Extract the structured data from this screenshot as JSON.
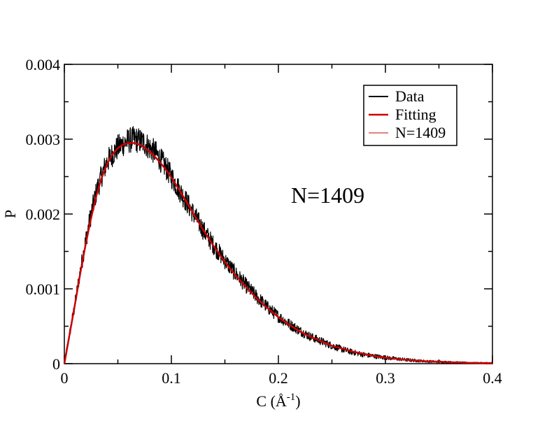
{
  "chart_data": {
    "type": "line",
    "title": "",
    "xlabel": "C (Å",
    "xlabel_sup": "-1",
    "xlabel_close": ")",
    "ylabel": "P",
    "xlim": [
      0,
      0.4
    ],
    "ylim": [
      0,
      0.004
    ],
    "x_ticks": [
      {
        "value": 0,
        "label": "0"
      },
      {
        "value": 0.1,
        "label": "0.1"
      },
      {
        "value": 0.2,
        "label": "0.2"
      },
      {
        "value": 0.3,
        "label": "0.3"
      },
      {
        "value": 0.4,
        "label": "0.4"
      }
    ],
    "y_ticks": [
      {
        "value": 0,
        "label": "0"
      },
      {
        "value": 0.001,
        "label": "0.001"
      },
      {
        "value": 0.002,
        "label": "0.002"
      },
      {
        "value": 0.003,
        "label": "0.003"
      },
      {
        "value": 0.004,
        "label": "0.004"
      }
    ],
    "x_minor": [
      0.05,
      0.15,
      0.25,
      0.35
    ],
    "y_minor": [
      0.0005,
      0.0015,
      0.0025,
      0.0035
    ],
    "grid": false,
    "legend_position": "top-right",
    "annotation": "N=1409",
    "series": [
      {
        "name": "Data",
        "color": "#000000",
        "style": "noisy",
        "x": [
          0,
          0.005,
          0.01,
          0.015,
          0.02,
          0.025,
          0.03,
          0.035,
          0.04,
          0.045,
          0.05,
          0.055,
          0.06,
          0.065,
          0.07,
          0.075,
          0.08,
          0.085,
          0.09,
          0.095,
          0.1,
          0.11,
          0.12,
          0.13,
          0.14,
          0.15,
          0.16,
          0.17,
          0.18,
          0.19,
          0.2,
          0.21,
          0.22,
          0.23,
          0.24,
          0.25,
          0.26,
          0.27,
          0.28,
          0.29,
          0.3,
          0.32,
          0.34,
          0.36,
          0.38,
          0.4
        ],
        "y": [
          2e-05,
          0.0004,
          0.0008,
          0.00125,
          0.00165,
          0.002,
          0.0023,
          0.00252,
          0.0027,
          0.0028,
          0.00289,
          0.00294,
          0.00298,
          0.003,
          0.00298,
          0.00295,
          0.00288,
          0.00282,
          0.00272,
          0.00262,
          0.0025,
          0.00226,
          0.00202,
          0.00178,
          0.00157,
          0.00138,
          0.0012,
          0.00104,
          0.00089,
          0.00075,
          0.00063,
          0.00053,
          0.00044,
          0.00036,
          0.0003,
          0.00024,
          0.00019,
          0.00015,
          0.00012,
          0.0001,
          8e-05,
          5e-05,
          3e-05,
          2e-05,
          1e-05,
          1e-05
        ]
      },
      {
        "name": "Fitting",
        "color": "#cc0000",
        "style": "thick",
        "x": [
          0,
          0.005,
          0.01,
          0.015,
          0.02,
          0.025,
          0.03,
          0.035,
          0.04,
          0.045,
          0.05,
          0.055,
          0.06,
          0.065,
          0.07,
          0.075,
          0.08,
          0.085,
          0.09,
          0.095,
          0.1,
          0.11,
          0.12,
          0.13,
          0.14,
          0.15,
          0.16,
          0.17,
          0.18,
          0.19,
          0.2,
          0.21,
          0.22,
          0.23,
          0.24,
          0.25,
          0.26,
          0.27,
          0.28,
          0.29,
          0.3,
          0.32,
          0.34,
          0.36,
          0.38,
          0.4
        ],
        "y": [
          0,
          0.0004,
          0.0008,
          0.00122,
          0.0016,
          0.00195,
          0.00225,
          0.00249,
          0.00267,
          0.0028,
          0.00288,
          0.00293,
          0.00295,
          0.00295,
          0.00293,
          0.00289,
          0.00283,
          0.00276,
          0.00268,
          0.00259,
          0.00249,
          0.00226,
          0.00202,
          0.00178,
          0.00156,
          0.00136,
          0.00118,
          0.00102,
          0.00087,
          0.00074,
          0.00062,
          0.00052,
          0.00043,
          0.00036,
          0.0003,
          0.00024,
          0.0002,
          0.00016,
          0.00013,
          0.0001,
          8e-05,
          5e-05,
          3e-05,
          2e-05,
          1e-05,
          5e-06
        ]
      },
      {
        "name": "N=1409",
        "color": "#cc0000",
        "style": "thin",
        "x": [
          0,
          0.005,
          0.01,
          0.015,
          0.02,
          0.025,
          0.03,
          0.035,
          0.04,
          0.045,
          0.05,
          0.055,
          0.06,
          0.065,
          0.07,
          0.075,
          0.08,
          0.085,
          0.09,
          0.095,
          0.1,
          0.11,
          0.12,
          0.13,
          0.14,
          0.15,
          0.16,
          0.17,
          0.18,
          0.19,
          0.2,
          0.21,
          0.22,
          0.23,
          0.24,
          0.25,
          0.26,
          0.27,
          0.28,
          0.29,
          0.3,
          0.32,
          0.34,
          0.36,
          0.38,
          0.4
        ],
        "y": [
          0,
          0.0004,
          0.0008,
          0.00122,
          0.0016,
          0.00195,
          0.00225,
          0.00249,
          0.00267,
          0.0028,
          0.00288,
          0.00293,
          0.00295,
          0.00295,
          0.00293,
          0.00289,
          0.00283,
          0.00276,
          0.00268,
          0.00259,
          0.00249,
          0.00226,
          0.00202,
          0.00178,
          0.00156,
          0.00136,
          0.00118,
          0.00102,
          0.00087,
          0.00074,
          0.00062,
          0.00052,
          0.00043,
          0.00036,
          0.0003,
          0.00024,
          0.0002,
          0.00016,
          0.00013,
          0.0001,
          8e-05,
          5e-05,
          3e-05,
          2e-05,
          1e-05,
          5e-06
        ]
      }
    ]
  }
}
